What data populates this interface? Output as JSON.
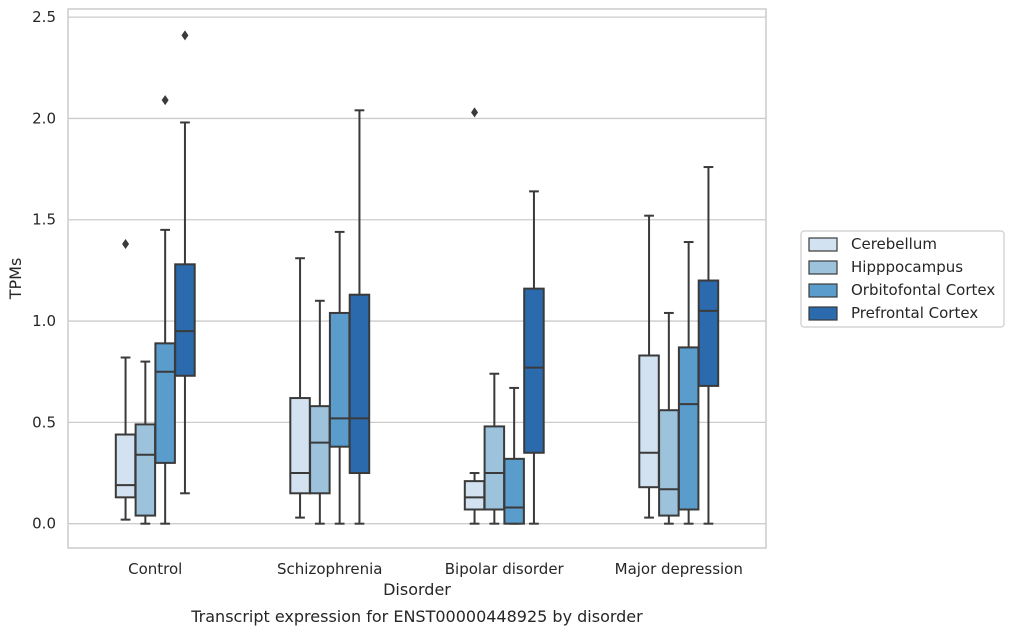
{
  "chart_data": {
    "type": "box",
    "xlabel": "Disorder",
    "ylabel": "TPMs",
    "caption": "Transcript expression for ENST00000448925 by disorder",
    "ylim": [
      -0.12,
      2.54
    ],
    "yticks": [
      0.0,
      0.5,
      1.0,
      1.5,
      2.0,
      2.5
    ],
    "ytick_labels": [
      "0.0",
      "0.5",
      "1.0",
      "1.5",
      "2.0",
      "2.5"
    ],
    "grid": "horizontal",
    "legend_position": "right",
    "categories": [
      "Control",
      "Schizophrenia",
      "Bipolar disorder",
      "Major depression"
    ],
    "series": [
      {
        "name": "Cerebellum",
        "color": "#d2e2f0",
        "boxes": [
          {
            "whislo": 0.02,
            "q1": 0.13,
            "med": 0.19,
            "q3": 0.44,
            "whishi": 0.82,
            "fliers": [
              1.38
            ]
          },
          {
            "whislo": 0.03,
            "q1": 0.15,
            "med": 0.25,
            "q3": 0.62,
            "whishi": 1.31,
            "fliers": []
          },
          {
            "whislo": 0.0,
            "q1": 0.07,
            "med": 0.13,
            "q3": 0.21,
            "whishi": 0.25,
            "fliers": [
              2.03
            ]
          },
          {
            "whislo": 0.03,
            "q1": 0.18,
            "med": 0.35,
            "q3": 0.83,
            "whishi": 1.52,
            "fliers": []
          }
        ]
      },
      {
        "name": "Hipppocampus",
        "color": "#9dc3dc",
        "boxes": [
          {
            "whislo": 0.0,
            "q1": 0.04,
            "med": 0.34,
            "q3": 0.49,
            "whishi": 0.8,
            "fliers": []
          },
          {
            "whislo": 0.0,
            "q1": 0.15,
            "med": 0.4,
            "q3": 0.58,
            "whishi": 1.1,
            "fliers": []
          },
          {
            "whislo": 0.0,
            "q1": 0.07,
            "med": 0.25,
            "q3": 0.48,
            "whishi": 0.74,
            "fliers": []
          },
          {
            "whislo": 0.0,
            "q1": 0.04,
            "med": 0.17,
            "q3": 0.56,
            "whishi": 1.04,
            "fliers": []
          }
        ]
      },
      {
        "name": "Orbitofontal Cortex",
        "color": "#5a9ccb",
        "boxes": [
          {
            "whislo": 0.0,
            "q1": 0.3,
            "med": 0.75,
            "q3": 0.89,
            "whishi": 1.45,
            "fliers": [
              2.09
            ]
          },
          {
            "whislo": 0.0,
            "q1": 0.38,
            "med": 0.52,
            "q3": 1.04,
            "whishi": 1.44,
            "fliers": []
          },
          {
            "whislo": 0.0,
            "q1": 0.0,
            "med": 0.08,
            "q3": 0.32,
            "whishi": 0.67,
            "fliers": []
          },
          {
            "whislo": 0.0,
            "q1": 0.07,
            "med": 0.59,
            "q3": 0.87,
            "whishi": 1.39,
            "fliers": []
          }
        ]
      },
      {
        "name": "Prefrontal Cortex",
        "color": "#2a6aad",
        "boxes": [
          {
            "whislo": 0.15,
            "q1": 0.73,
            "med": 0.95,
            "q3": 1.28,
            "whishi": 1.98,
            "fliers": [
              2.41
            ]
          },
          {
            "whislo": 0.0,
            "q1": 0.25,
            "med": 0.52,
            "q3": 1.13,
            "whishi": 2.04,
            "fliers": []
          },
          {
            "whislo": 0.0,
            "q1": 0.35,
            "med": 0.77,
            "q3": 1.16,
            "whishi": 1.64,
            "fliers": []
          },
          {
            "whislo": 0.0,
            "q1": 0.68,
            "med": 1.05,
            "q3": 1.2,
            "whishi": 1.76,
            "fliers": []
          }
        ]
      }
    ]
  }
}
